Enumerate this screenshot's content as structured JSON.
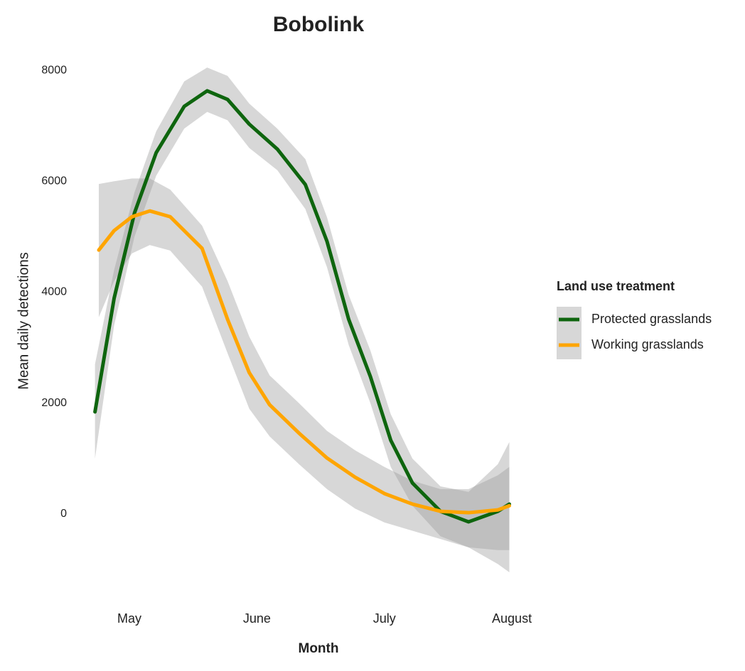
{
  "chart_data": {
    "type": "line",
    "title": "Bobolink",
    "x_label": "Month",
    "y_label": "Mean daily detections",
    "legend_title": "Land use treatment",
    "legend_position": "right",
    "xlim": [
      4.6,
      8.1
    ],
    "xticks": [
      {
        "value": 5,
        "label": "May"
      },
      {
        "value": 6,
        "label": "June"
      },
      {
        "value": 7,
        "label": "July"
      },
      {
        "value": 8,
        "label": "August"
      }
    ],
    "ylim": [
      -1200,
      8300
    ],
    "yticks": [
      0,
      2000,
      4000,
      6000,
      8000
    ],
    "band_color": "#9a9a9a",
    "series": [
      {
        "name": "Protected grasslands",
        "color": "#0e650e",
        "x": [
          4.73,
          4.88,
          5.04,
          5.21,
          5.43,
          5.61,
          5.77,
          5.94,
          6.16,
          6.38,
          6.55,
          6.72,
          6.89,
          7.05,
          7.22,
          7.44,
          7.66,
          7.89,
          7.98
        ],
        "values": [
          1843,
          3890,
          5430,
          6515,
          7350,
          7630,
          7475,
          7030,
          6580,
          5940,
          4915,
          3510,
          2480,
          1330,
          560,
          50,
          -140,
          50,
          180
        ],
        "upper": [
          2700,
          4400,
          5800,
          6900,
          7800,
          8050,
          7900,
          7400,
          6950,
          6400,
          5350,
          3950,
          2950,
          1800,
          1000,
          500,
          400,
          900,
          1300
        ],
        "lower": [
          1000,
          3400,
          5000,
          6100,
          6950,
          7250,
          7100,
          6600,
          6200,
          5500,
          4450,
          3050,
          2000,
          850,
          150,
          -400,
          -600,
          -650,
          -650
        ]
      },
      {
        "name": "Working grasslands",
        "color": "#ffa500",
        "x": [
          4.76,
          4.88,
          5.02,
          5.16,
          5.32,
          5.57,
          5.77,
          5.94,
          6.1,
          6.33,
          6.55,
          6.77,
          7.0,
          7.22,
          7.44,
          7.66,
          7.89,
          7.98
        ],
        "values": [
          4760,
          5110,
          5360,
          5465,
          5360,
          4790,
          3510,
          2550,
          1970,
          1460,
          1010,
          665,
          370,
          180,
          50,
          25,
          75,
          150
        ],
        "upper": [
          5950,
          6000,
          6050,
          6050,
          5850,
          5200,
          4200,
          3200,
          2500,
          2000,
          1500,
          1150,
          850,
          600,
          450,
          450,
          700,
          850
        ],
        "lower": [
          3550,
          4200,
          4700,
          4850,
          4750,
          4100,
          2900,
          1900,
          1400,
          900,
          450,
          100,
          -150,
          -300,
          -450,
          -600,
          -900,
          -1050
        ]
      }
    ]
  }
}
